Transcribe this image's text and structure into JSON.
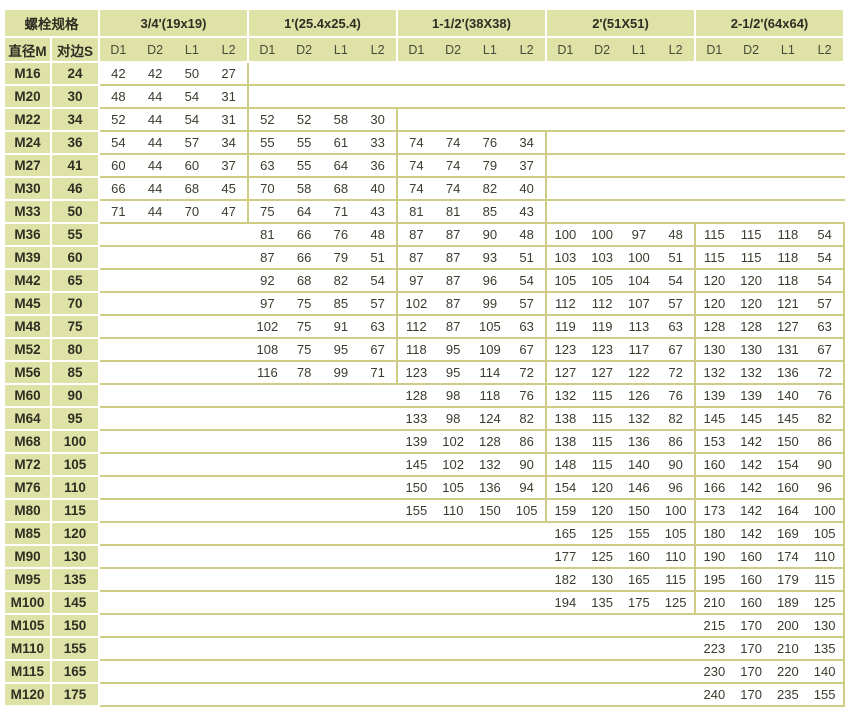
{
  "header": {
    "spec_label": "螺栓规格",
    "diameter_label": "直径M",
    "across_flats_label": "对边S",
    "sizes": [
      "3/4'(19x19)",
      "1'(25.4x25.4)",
      "1-1/2'(38X38)",
      "2'(51X51)",
      "2-1/2'(64x64)"
    ],
    "sub_columns": [
      "D1",
      "D2",
      "L1",
      "L2"
    ]
  },
  "colors": {
    "header_bg": "#dfe2a7",
    "grid_line": "#cfcc86"
  },
  "rows": [
    {
      "m": "M16",
      "s": "24",
      "groups": [
        [
          "42",
          "42",
          "50",
          "27"
        ],
        null,
        null,
        null,
        null
      ]
    },
    {
      "m": "M20",
      "s": "30",
      "groups": [
        [
          "48",
          "44",
          "54",
          "31"
        ],
        null,
        null,
        null,
        null
      ]
    },
    {
      "m": "M22",
      "s": "34",
      "groups": [
        [
          "52",
          "44",
          "54",
          "31"
        ],
        [
          "52",
          "52",
          "58",
          "30"
        ],
        null,
        null,
        null
      ]
    },
    {
      "m": "M24",
      "s": "36",
      "groups": [
        [
          "54",
          "44",
          "57",
          "34"
        ],
        [
          "55",
          "55",
          "61",
          "33"
        ],
        [
          "74",
          "74",
          "76",
          "34"
        ],
        null,
        null
      ]
    },
    {
      "m": "M27",
      "s": "41",
      "groups": [
        [
          "60",
          "44",
          "60",
          "37"
        ],
        [
          "63",
          "55",
          "64",
          "36"
        ],
        [
          "74",
          "74",
          "79",
          "37"
        ],
        null,
        null
      ]
    },
    {
      "m": "M30",
      "s": "46",
      "groups": [
        [
          "66",
          "44",
          "68",
          "45"
        ],
        [
          "70",
          "58",
          "68",
          "40"
        ],
        [
          "74",
          "74",
          "82",
          "40"
        ],
        null,
        null
      ]
    },
    {
      "m": "M33",
      "s": "50",
      "groups": [
        [
          "71",
          "44",
          "70",
          "47"
        ],
        [
          "75",
          "64",
          "71",
          "43"
        ],
        [
          "81",
          "81",
          "85",
          "43"
        ],
        null,
        null
      ]
    },
    {
      "m": "M36",
      "s": "55",
      "groups": [
        null,
        [
          "81",
          "66",
          "76",
          "48"
        ],
        [
          "87",
          "87",
          "90",
          "48"
        ],
        [
          "100",
          "100",
          "97",
          "48"
        ],
        [
          "115",
          "115",
          "118",
          "54"
        ]
      ]
    },
    {
      "m": "M39",
      "s": "60",
      "groups": [
        null,
        [
          "87",
          "66",
          "79",
          "51"
        ],
        [
          "87",
          "87",
          "93",
          "51"
        ],
        [
          "103",
          "103",
          "100",
          "51"
        ],
        [
          "115",
          "115",
          "118",
          "54"
        ]
      ]
    },
    {
      "m": "M42",
      "s": "65",
      "groups": [
        null,
        [
          "92",
          "68",
          "82",
          "54"
        ],
        [
          "97",
          "87",
          "96",
          "54"
        ],
        [
          "105",
          "105",
          "104",
          "54"
        ],
        [
          "120",
          "120",
          "118",
          "54"
        ]
      ]
    },
    {
      "m": "M45",
      "s": "70",
      "groups": [
        null,
        [
          "97",
          "75",
          "85",
          "57"
        ],
        [
          "102",
          "87",
          "99",
          "57"
        ],
        [
          "112",
          "112",
          "107",
          "57"
        ],
        [
          "120",
          "120",
          "121",
          "57"
        ]
      ]
    },
    {
      "m": "M48",
      "s": "75",
      "groups": [
        null,
        [
          "102",
          "75",
          "91",
          "63"
        ],
        [
          "112",
          "87",
          "105",
          "63"
        ],
        [
          "119",
          "119",
          "113",
          "63"
        ],
        [
          "128",
          "128",
          "127",
          "63"
        ]
      ]
    },
    {
      "m": "M52",
      "s": "80",
      "groups": [
        null,
        [
          "108",
          "75",
          "95",
          "67"
        ],
        [
          "118",
          "95",
          "109",
          "67"
        ],
        [
          "123",
          "123",
          "117",
          "67"
        ],
        [
          "130",
          "130",
          "131",
          "67"
        ]
      ]
    },
    {
      "m": "M56",
      "s": "85",
      "groups": [
        null,
        [
          "116",
          "78",
          "99",
          "71"
        ],
        [
          "123",
          "95",
          "114",
          "72"
        ],
        [
          "127",
          "127",
          "122",
          "72"
        ],
        [
          "132",
          "132",
          "136",
          "72"
        ]
      ]
    },
    {
      "m": "M60",
      "s": "90",
      "groups": [
        null,
        null,
        [
          "128",
          "98",
          "118",
          "76"
        ],
        [
          "132",
          "115",
          "126",
          "76"
        ],
        [
          "139",
          "139",
          "140",
          "76"
        ]
      ]
    },
    {
      "m": "M64",
      "s": "95",
      "groups": [
        null,
        null,
        [
          "133",
          "98",
          "124",
          "82"
        ],
        [
          "138",
          "115",
          "132",
          "82"
        ],
        [
          "145",
          "145",
          "145",
          "82"
        ]
      ]
    },
    {
      "m": "M68",
      "s": "100",
      "groups": [
        null,
        null,
        [
          "139",
          "102",
          "128",
          "86"
        ],
        [
          "138",
          "115",
          "136",
          "86"
        ],
        [
          "153",
          "142",
          "150",
          "86"
        ]
      ]
    },
    {
      "m": "M72",
      "s": "105",
      "groups": [
        null,
        null,
        [
          "145",
          "102",
          "132",
          "90"
        ],
        [
          "148",
          "115",
          "140",
          "90"
        ],
        [
          "160",
          "142",
          "154",
          "90"
        ]
      ]
    },
    {
      "m": "M76",
      "s": "110",
      "groups": [
        null,
        null,
        [
          "150",
          "105",
          "136",
          "94"
        ],
        [
          "154",
          "120",
          "146",
          "96"
        ],
        [
          "166",
          "142",
          "160",
          "96"
        ]
      ]
    },
    {
      "m": "M80",
      "s": "115",
      "groups": [
        null,
        null,
        [
          "155",
          "110",
          "150",
          "105"
        ],
        [
          "159",
          "120",
          "150",
          "100"
        ],
        [
          "173",
          "142",
          "164",
          "100"
        ]
      ]
    },
    {
      "m": "M85",
      "s": "120",
      "groups": [
        null,
        null,
        null,
        [
          "165",
          "125",
          "155",
          "105"
        ],
        [
          "180",
          "142",
          "169",
          "105"
        ]
      ]
    },
    {
      "m": "M90",
      "s": "130",
      "groups": [
        null,
        null,
        null,
        [
          "177",
          "125",
          "160",
          "110"
        ],
        [
          "190",
          "160",
          "174",
          "110"
        ]
      ]
    },
    {
      "m": "M95",
      "s": "135",
      "groups": [
        null,
        null,
        null,
        [
          "182",
          "130",
          "165",
          "115"
        ],
        [
          "195",
          "160",
          "179",
          "115"
        ]
      ]
    },
    {
      "m": "M100",
      "s": "145",
      "groups": [
        null,
        null,
        null,
        [
          "194",
          "135",
          "175",
          "125"
        ],
        [
          "210",
          "160",
          "189",
          "125"
        ]
      ]
    },
    {
      "m": "M105",
      "s": "150",
      "groups": [
        null,
        null,
        null,
        null,
        [
          "215",
          "170",
          "200",
          "130"
        ]
      ]
    },
    {
      "m": "M110",
      "s": "155",
      "groups": [
        null,
        null,
        null,
        null,
        [
          "223",
          "170",
          "210",
          "135"
        ]
      ]
    },
    {
      "m": "M115",
      "s": "165",
      "groups": [
        null,
        null,
        null,
        null,
        [
          "230",
          "170",
          "220",
          "140"
        ]
      ]
    },
    {
      "m": "M120",
      "s": "175",
      "groups": [
        null,
        null,
        null,
        null,
        [
          "240",
          "170",
          "235",
          "155"
        ]
      ]
    }
  ]
}
